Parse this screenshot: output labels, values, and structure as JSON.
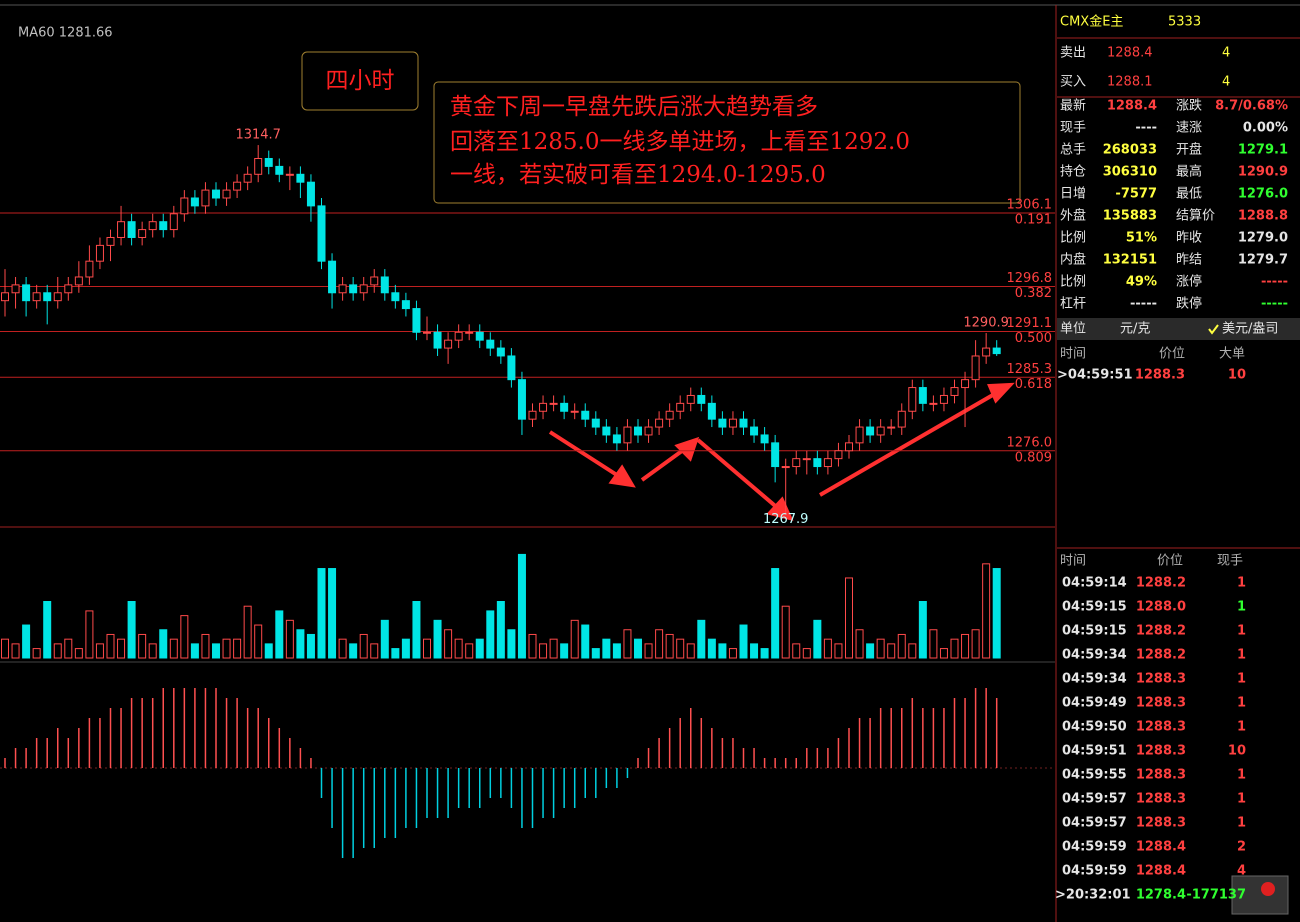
{
  "chart": {
    "type": "candlestick",
    "indicator": "MA60 1281.66",
    "period_label": "四小时",
    "annotation": [
      "黄金下周一早盘先跌后涨大趋势看多",
      "回落至1285.0一线多单进场，上看至1292.0",
      "一线，若实破可看至1294.0-1295.0"
    ],
    "ylim": [
      1266.6,
      1331.8
    ],
    "candles": [
      [
        1295,
        1299,
        1293,
        1296
      ],
      [
        1296,
        1298,
        1294,
        1297
      ],
      [
        1297,
        1298,
        1293,
        1295
      ],
      [
        1295,
        1297,
        1294,
        1296
      ],
      [
        1296,
        1297,
        1292,
        1295
      ],
      [
        1295,
        1298,
        1294,
        1296
      ],
      [
        1296,
        1298,
        1295,
        1297
      ],
      [
        1297,
        1300,
        1296,
        1298
      ],
      [
        1298,
        1302,
        1297,
        1300
      ],
      [
        1300,
        1303,
        1299,
        1302
      ],
      [
        1302,
        1304,
        1300,
        1303
      ],
      [
        1303,
        1307,
        1302,
        1305
      ],
      [
        1305,
        1306,
        1302,
        1303
      ],
      [
        1303,
        1305,
        1302,
        1304
      ],
      [
        1304,
        1306,
        1303,
        1305
      ],
      [
        1305,
        1306,
        1303,
        1304
      ],
      [
        1304,
        1307,
        1303,
        1306
      ],
      [
        1306,
        1309,
        1305,
        1308
      ],
      [
        1308,
        1309,
        1306,
        1307
      ],
      [
        1307,
        1310,
        1306,
        1309
      ],
      [
        1309,
        1310,
        1307,
        1308
      ],
      [
        1308,
        1310,
        1307,
        1309
      ],
      [
        1309,
        1311,
        1308,
        1310
      ],
      [
        1310,
        1312,
        1309,
        1311
      ],
      [
        1311,
        1314.7,
        1310,
        1313
      ],
      [
        1313,
        1314,
        1311,
        1312
      ],
      [
        1312,
        1313,
        1310,
        1311
      ],
      [
        1311,
        1312,
        1309,
        1311
      ],
      [
        1311,
        1312,
        1308,
        1310
      ],
      [
        1310,
        1311,
        1305,
        1307
      ],
      [
        1307,
        1308,
        1299,
        1300
      ],
      [
        1300,
        1301,
        1294,
        1296
      ],
      [
        1296,
        1298,
        1295,
        1297
      ],
      [
        1297,
        1298,
        1295,
        1296
      ],
      [
        1296,
        1298,
        1295,
        1297
      ],
      [
        1297,
        1299,
        1296,
        1298
      ],
      [
        1298,
        1299,
        1295,
        1296
      ],
      [
        1296,
        1297,
        1294,
        1295
      ],
      [
        1295,
        1296,
        1293,
        1294
      ],
      [
        1294,
        1295,
        1290,
        1291
      ],
      [
        1291,
        1293,
        1290,
        1291
      ],
      [
        1291,
        1292,
        1288,
        1289
      ],
      [
        1289,
        1291,
        1287,
        1290
      ],
      [
        1290,
        1292,
        1289,
        1291
      ],
      [
        1291,
        1292,
        1290,
        1291
      ],
      [
        1291,
        1292,
        1289,
        1290
      ],
      [
        1290,
        1291,
        1288,
        1289
      ],
      [
        1289,
        1290,
        1287,
        1288
      ],
      [
        1288,
        1289,
        1284,
        1285
      ],
      [
        1285,
        1286,
        1278,
        1280
      ],
      [
        1280,
        1282,
        1279,
        1281
      ],
      [
        1281,
        1283,
        1280,
        1282
      ],
      [
        1282,
        1283,
        1281,
        1282
      ],
      [
        1282,
        1283,
        1280,
        1281
      ],
      [
        1281,
        1282,
        1280,
        1281
      ],
      [
        1281,
        1282,
        1279,
        1280
      ],
      [
        1280,
        1281,
        1278,
        1279
      ],
      [
        1279,
        1280,
        1277,
        1278
      ],
      [
        1278,
        1279,
        1276,
        1277
      ],
      [
        1277,
        1280,
        1276,
        1279
      ],
      [
        1279,
        1280,
        1277,
        1278
      ],
      [
        1278,
        1280,
        1277,
        1279
      ],
      [
        1279,
        1281,
        1278,
        1280
      ],
      [
        1280,
        1282,
        1279,
        1281
      ],
      [
        1281,
        1283,
        1280,
        1282
      ],
      [
        1282,
        1284,
        1281,
        1283
      ],
      [
        1283,
        1284,
        1281,
        1282
      ],
      [
        1282,
        1283,
        1279,
        1280
      ],
      [
        1280,
        1281,
        1278,
        1279
      ],
      [
        1279,
        1281,
        1278,
        1280
      ],
      [
        1280,
        1281,
        1278,
        1279
      ],
      [
        1279,
        1280,
        1277,
        1278
      ],
      [
        1278,
        1279,
        1276,
        1277
      ],
      [
        1277,
        1278,
        1272,
        1274
      ],
      [
        1274,
        1275,
        1267.9,
        1274
      ],
      [
        1274,
        1276,
        1273,
        1275
      ],
      [
        1275,
        1276,
        1273,
        1275
      ],
      [
        1275,
        1276,
        1273,
        1274
      ],
      [
        1274,
        1276,
        1273,
        1275
      ],
      [
        1275,
        1277,
        1274,
        1276
      ],
      [
        1276,
        1278,
        1275,
        1277
      ],
      [
        1277,
        1280,
        1276,
        1279
      ],
      [
        1279,
        1280,
        1277,
        1278
      ],
      [
        1278,
        1280,
        1277,
        1279
      ],
      [
        1279,
        1280,
        1278,
        1279
      ],
      [
        1279,
        1282,
        1278,
        1281
      ],
      [
        1281,
        1285,
        1280,
        1284
      ],
      [
        1284,
        1285,
        1281,
        1282
      ],
      [
        1282,
        1283,
        1281,
        1282
      ],
      [
        1282,
        1284,
        1281,
        1283
      ],
      [
        1283,
        1285,
        1282,
        1284
      ],
      [
        1284,
        1286,
        1279,
        1285
      ],
      [
        1285,
        1290,
        1284,
        1288
      ],
      [
        1288,
        1290.9,
        1287,
        1289
      ],
      [
        1289,
        1290,
        1288,
        1288.3
      ]
    ],
    "fib_levels": [
      {
        "price": 1306.1,
        "ratio": 0.191
      },
      {
        "price": 1296.8,
        "ratio": 0.382
      },
      {
        "price": 1291.1,
        "ratio": {
          "value": 0.5,
          "label": "0.500"
        }
      },
      {
        "price": 1285.3,
        "ratio": 0.618
      },
      {
        "price": {
          "value": 1276,
          "label": "1276.0"
        },
        "ratio": 0.809
      }
    ],
    "volume": {
      "ylim": [
        0,
        120
      ],
      "values": [
        20,
        15,
        35,
        10,
        60,
        15,
        20,
        10,
        50,
        15,
        25,
        20,
        60,
        25,
        15,
        30,
        20,
        45,
        15,
        25,
        15,
        20,
        20,
        55,
        35,
        15,
        50,
        40,
        30,
        25,
        95,
        95,
        20,
        15,
        25,
        15,
        40,
        10,
        20,
        60,
        20,
        40,
        30,
        20,
        15,
        20,
        50,
        60,
        30,
        110,
        25,
        15,
        20,
        15,
        40,
        35,
        10,
        20,
        15,
        30,
        20,
        15,
        30,
        25,
        20,
        15,
        40,
        20,
        15,
        10,
        35,
        15,
        10,
        95,
        55,
        15,
        10,
        40,
        20,
        15,
        85,
        30,
        15,
        20,
        15,
        25,
        15,
        60,
        30,
        10,
        20,
        25,
        30,
        100,
        95
      ]
    },
    "macd": {
      "ylim": [
        -10,
        10
      ],
      "values": [
        1,
        2,
        2,
        3,
        3,
        4,
        3,
        4,
        5,
        5,
        6,
        6,
        7,
        7,
        7,
        8,
        8,
        8,
        8,
        8,
        8,
        7,
        7,
        6,
        6,
        5,
        4,
        3,
        2,
        1,
        -3,
        -6,
        -9,
        -9,
        -8,
        -8,
        -7,
        -7,
        -6,
        -6,
        -5,
        -5,
        -5,
        -4,
        -4,
        -4,
        -3,
        -3,
        -4,
        -6,
        -6,
        -5,
        -5,
        -4,
        -4,
        -3,
        -3,
        -2,
        -2,
        -1,
        1,
        2,
        3,
        4,
        5,
        6,
        5,
        4,
        3,
        3,
        2,
        2,
        1,
        1,
        1,
        1,
        2,
        2,
        2,
        3,
        4,
        5,
        5,
        6,
        6,
        6,
        7,
        6,
        6,
        6,
        7,
        7,
        8,
        8,
        7
      ]
    }
  },
  "quote_panel": {
    "symbol": "CMX金E主",
    "code": "5333",
    "ask": {
      "label": "卖出",
      "price": "1288.4",
      "qty": "4"
    },
    "bid": {
      "label": "买入",
      "price": "1288.1",
      "qty": "4"
    },
    "rows": [
      [
        {
          "label": "最新",
          "value": "1288.4",
          "color": "#ff4040"
        },
        {
          "label": "涨跌",
          "value": "8.7/0.68%",
          "color": "#ff4040"
        }
      ],
      [
        {
          "label": "现手",
          "value": "----",
          "color": "#e6e6e6"
        },
        {
          "label": "速涨",
          "value": "0.00%",
          "color": "#e6e6e6"
        }
      ],
      [
        {
          "label": "总手",
          "value": "268033",
          "color": "#ffff40"
        },
        {
          "label": "开盘",
          "value": "1279.1",
          "color": "#30ff30"
        }
      ],
      [
        {
          "label": "持仓",
          "value": "306310",
          "color": "#ffff40"
        },
        {
          "label": "最高",
          "value": "1290.9",
          "color": "#ff4040"
        }
      ],
      [
        {
          "label": "日增",
          "value": "-7577",
          "color": "#ffff40"
        },
        {
          "label": "最低",
          "value": "1276.0",
          "color": "#30ff30"
        }
      ],
      [
        {
          "label": "外盘",
          "value": "135883",
          "color": "#ffff40"
        },
        {
          "label": "结算价",
          "value": "1288.8",
          "color": "#ff4040"
        }
      ],
      [
        {
          "label": "比例",
          "value": "51%",
          "color": "#ffff40"
        },
        {
          "label": "昨收",
          "value": "1279.0",
          "color": "#e6e6e6"
        }
      ],
      [
        {
          "label": "内盘",
          "value": "132151",
          "color": "#ffff40"
        },
        {
          "label": "昨结",
          "value": "1279.7",
          "color": "#e6e6e6"
        }
      ],
      [
        {
          "label": "比例",
          "value": "49%",
          "color": "#ffff40"
        },
        {
          "label": "涨停",
          "value": "-----",
          "color": "#ff4040"
        }
      ],
      [
        {
          "label": "杠杆",
          "value": "-----",
          "color": "#e6e6e6"
        },
        {
          "label": "跌停",
          "value": "-----",
          "color": "#30ff30"
        }
      ]
    ],
    "unit": {
      "label": "单位",
      "cny": "元/克",
      "usd": "美元/盎司"
    },
    "big_orders": {
      "headers": [
        "时间",
        "价位",
        "大单"
      ],
      "rows": [
        [
          ">04:59:51",
          "1288.3",
          "10"
        ]
      ]
    },
    "ticks": {
      "headers": [
        "时间",
        "价位",
        "现手"
      ],
      "rows": [
        {
          "time": "04:59:14",
          "price": "1288.2",
          "qty": "1",
          "pc": "#ff4040",
          "qc": "#ff4040"
        },
        {
          "time": "04:59:15",
          "price": "1288.0",
          "qty": "1",
          "pc": "#ff4040",
          "qc": "#30ff30"
        },
        {
          "time": "04:59:15",
          "price": "1288.2",
          "qty": "1",
          "pc": "#ff4040",
          "qc": "#ff4040"
        },
        {
          "time": "04:59:34",
          "price": "1288.2",
          "qty": "1",
          "pc": "#ff4040",
          "qc": "#ff4040"
        },
        {
          "time": "04:59:34",
          "price": "1288.3",
          "qty": "1",
          "pc": "#ff4040",
          "qc": "#ff4040"
        },
        {
          "time": "04:59:49",
          "price": "1288.3",
          "qty": "1",
          "pc": "#ff4040",
          "qc": "#ff4040"
        },
        {
          "time": "04:59:50",
          "price": "1288.3",
          "qty": "1",
          "pc": "#ff4040",
          "qc": "#ff4040"
        },
        {
          "time": "04:59:51",
          "price": "1288.3",
          "qty": "10",
          "pc": "#ff4040",
          "qc": "#ff4040"
        },
        {
          "time": "04:59:55",
          "price": "1288.3",
          "qty": "1",
          "pc": "#ff4040",
          "qc": "#ff4040"
        },
        {
          "time": "04:59:57",
          "price": "1288.3",
          "qty": "1",
          "pc": "#ff4040",
          "qc": "#ff4040"
        },
        {
          "time": "04:59:57",
          "price": "1288.3",
          "qty": "1",
          "pc": "#ff4040",
          "qc": "#ff4040"
        },
        {
          "time": "04:59:59",
          "price": "1288.4",
          "qty": "2",
          "pc": "#ff4040",
          "qc": "#ff4040"
        },
        {
          "time": "04:59:59",
          "price": "1288.4",
          "qty": "4",
          "pc": "#ff4040",
          "qc": "#ff4040"
        },
        {
          "time": ">20:32:01",
          "price": "1278.4",
          "qty": "-177137",
          "pc": "#30ff30",
          "qc": "#30ff30"
        }
      ]
    }
  }
}
